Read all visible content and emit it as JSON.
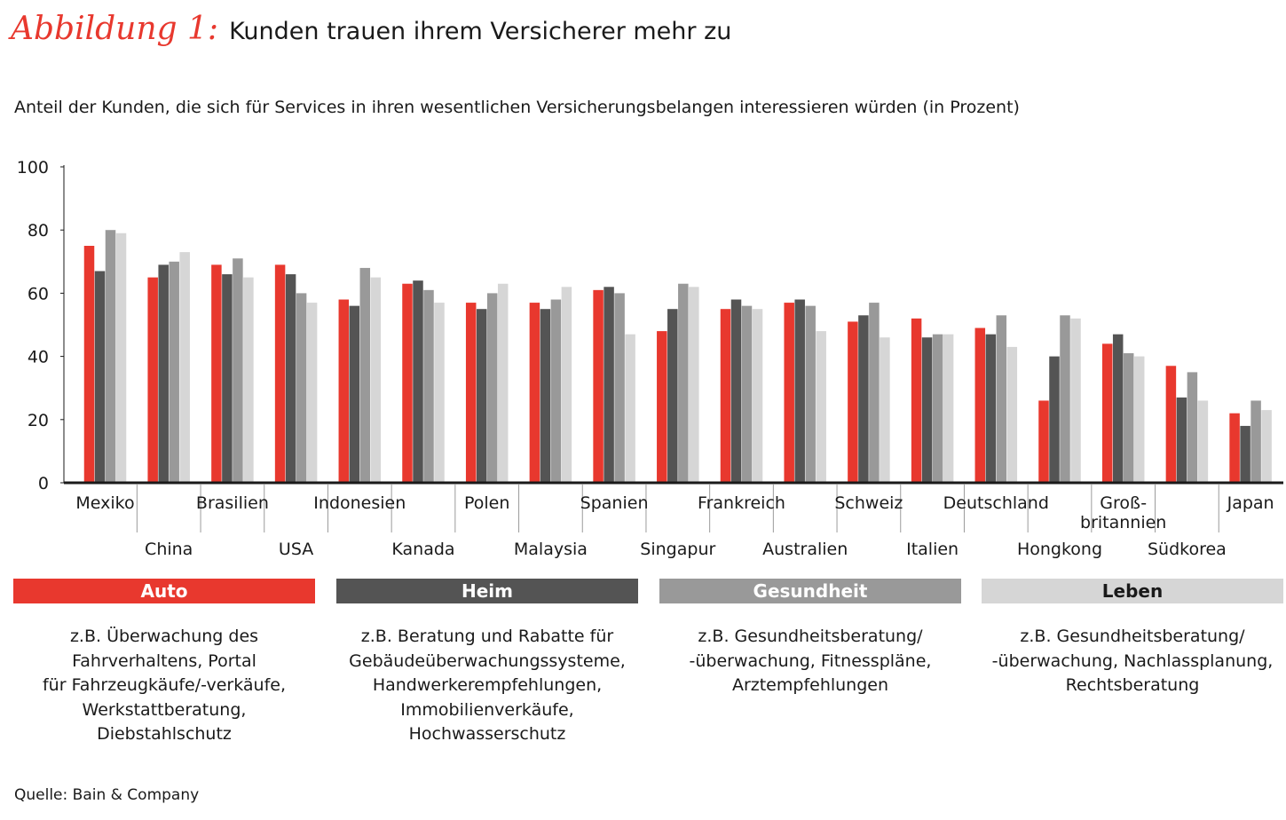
{
  "figure": {
    "label": "Abbildung 1:",
    "title": "Kunden trauen ihrem Versicherer mehr zu",
    "subtitle": "Anteil der Kunden, die sich für Services in ihren wesentlichen Versicherungsbelangen interessieren würden (in Prozent)",
    "source": "Quelle: Bain & Company"
  },
  "colors": {
    "Auto": "#e8382e",
    "Heim": "#545454",
    "Gesundheit": "#999999",
    "Leben": "#d6d6d6"
  },
  "legend": {
    "auto": {
      "label": "Auto",
      "description": [
        "z.B. Überwachung des",
        "Fahrverhaltens, Portal",
        "für Fahrzeugkäufe/-verkäufe,",
        "Werkstattberatung,",
        "Diebstahlschutz"
      ]
    },
    "heim": {
      "label": "Heim",
      "description": [
        "z.B. Beratung und Rabatte für",
        "Gebäudeüberwachungssysteme,",
        "Handwerkerempfehlungen,",
        "Immobilienverkäufe,",
        "Hochwasserschutz"
      ]
    },
    "gesundheit": {
      "label": "Gesundheit",
      "description": [
        "z.B. Gesundheitsberatung/",
        "-überwachung, Fitnesspläne,",
        "Arztempfehlungen"
      ]
    },
    "leben": {
      "label": "Leben",
      "description": [
        "z.B. Gesundheitsberatung/",
        "-überwachung, Nachlassplanung,",
        "Rechtsberatung"
      ]
    }
  },
  "chart_data": {
    "type": "bar",
    "ylim": [
      0,
      100
    ],
    "yticks": [
      0,
      20,
      40,
      60,
      80,
      100
    ],
    "categories": [
      "Mexiko",
      "China",
      "Brasilien",
      "USA",
      "Indonesien",
      "Kanada",
      "Polen",
      "Malaysia",
      "Spanien",
      "Singapur",
      "Frankreich",
      "Australien",
      "Schweiz",
      "Italien",
      "Deutschland",
      "Hongkong",
      "Groß-\nbritannien",
      "Südkorea",
      "Japan"
    ],
    "series": [
      {
        "name": "Auto",
        "values": [
          75,
          65,
          69,
          69,
          58,
          63,
          57,
          57,
          61,
          48,
          55,
          57,
          51,
          52,
          49,
          26,
          44,
          37,
          22
        ]
      },
      {
        "name": "Heim",
        "values": [
          67,
          69,
          66,
          66,
          56,
          64,
          55,
          55,
          62,
          55,
          58,
          58,
          53,
          46,
          47,
          40,
          47,
          27,
          18
        ]
      },
      {
        "name": "Gesundheit",
        "values": [
          80,
          70,
          71,
          60,
          68,
          61,
          60,
          58,
          60,
          63,
          56,
          56,
          57,
          47,
          53,
          53,
          41,
          35,
          26
        ]
      },
      {
        "name": "Leben",
        "values": [
          79,
          73,
          65,
          57,
          65,
          57,
          63,
          62,
          47,
          62,
          55,
          48,
          46,
          47,
          43,
          52,
          40,
          26,
          23
        ]
      }
    ]
  }
}
